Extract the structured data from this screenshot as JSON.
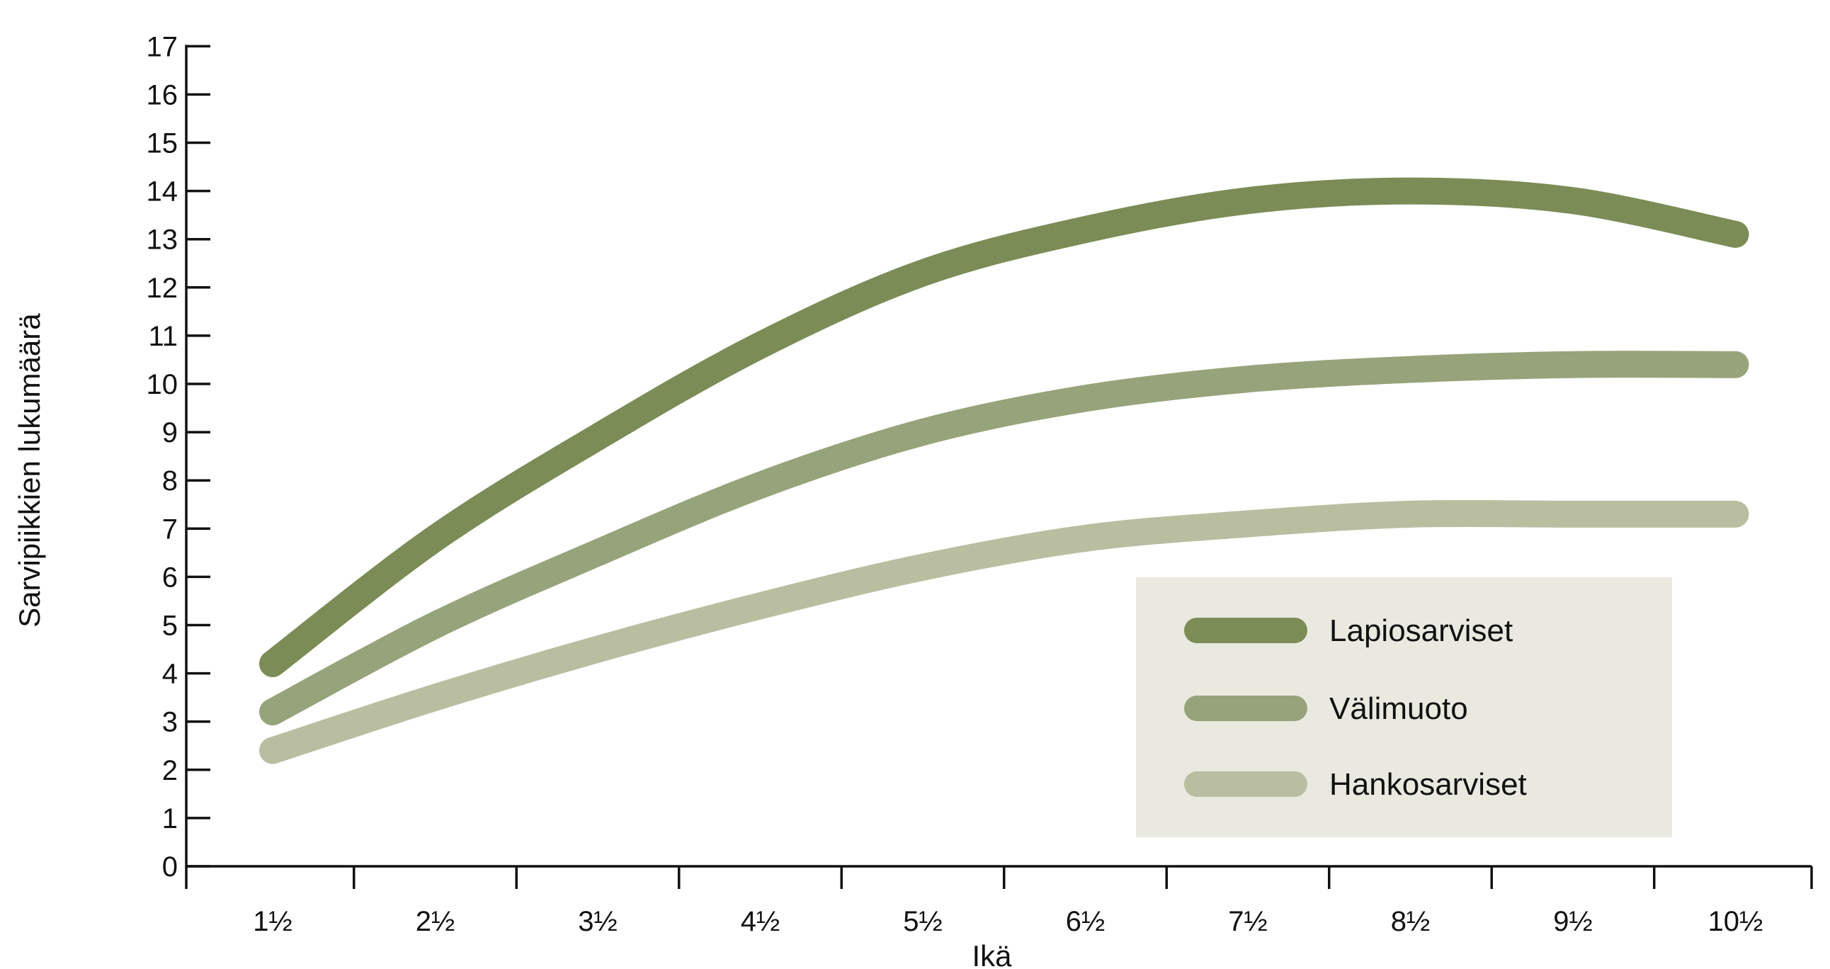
{
  "chart_data": {
    "type": "line",
    "title": "",
    "xlabel": "Ikä",
    "ylabel": "Sarvipiikkien lukumäärä",
    "categories": [
      "1½",
      "2½",
      "3½",
      "4½",
      "5½",
      "6½",
      "7½",
      "8½",
      "9½",
      "10½"
    ],
    "ylim": [
      0,
      17
    ],
    "yticks": [
      "0",
      "1",
      "2",
      "3",
      "4",
      "5",
      "6",
      "7",
      "8",
      "9",
      "10",
      "11",
      "12",
      "13",
      "14",
      "15",
      "16",
      "17"
    ],
    "grid": false,
    "legend_position": "bottom-right",
    "series": [
      {
        "name": "Lapiosarviset",
        "color": "#7b8c56",
        "values": [
          4.2,
          6.8,
          8.9,
          10.8,
          12.3,
          13.2,
          13.8,
          14.0,
          13.8,
          13.1
        ]
      },
      {
        "name": "Välimuoto",
        "color": "#97a37a",
        "values": [
          3.2,
          5.0,
          6.5,
          7.9,
          9.0,
          9.7,
          10.1,
          10.3,
          10.4,
          10.4
        ]
      },
      {
        "name": "Hankosarviset",
        "color": "#b9bea0",
        "values": [
          2.4,
          3.5,
          4.5,
          5.4,
          6.2,
          6.8,
          7.1,
          7.3,
          7.3,
          7.3
        ]
      }
    ],
    "legend_background": "#e9e9e0"
  }
}
